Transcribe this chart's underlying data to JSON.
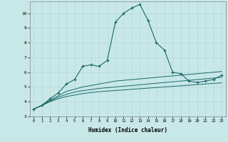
{
  "title": "",
  "xlabel": "Humidex (Indice chaleur)",
  "ylabel": "",
  "bg_color": "#c8e8e8",
  "line_color": "#1a6868",
  "grid_color": "#b8d8d8",
  "xlim": [
    -0.5,
    23.5
  ],
  "ylim": [
    3,
    10.8
  ],
  "xticks": [
    0,
    1,
    2,
    3,
    4,
    5,
    6,
    7,
    8,
    9,
    10,
    11,
    12,
    13,
    14,
    15,
    16,
    17,
    18,
    19,
    20,
    21,
    22,
    23
  ],
  "yticks": [
    3,
    4,
    5,
    6,
    7,
    8,
    9,
    10
  ],
  "main_x": [
    0,
    1,
    2,
    3,
    4,
    5,
    6,
    7,
    8,
    9,
    10,
    11,
    12,
    13,
    14,
    15,
    16,
    17,
    18,
    19,
    20,
    21,
    22,
    23
  ],
  "main_y": [
    3.5,
    3.75,
    4.2,
    4.6,
    5.2,
    5.5,
    6.4,
    6.5,
    6.4,
    6.8,
    9.4,
    10.0,
    10.35,
    10.6,
    9.5,
    8.0,
    7.5,
    6.0,
    5.9,
    5.4,
    5.3,
    5.4,
    5.5,
    5.8
  ],
  "line2_x": [
    0,
    1,
    2,
    3,
    4,
    5,
    6,
    7,
    8,
    9,
    10,
    11,
    12,
    13,
    14,
    15,
    16,
    17,
    18,
    19,
    20,
    21,
    22,
    23
  ],
  "line2_y": [
    3.5,
    3.75,
    4.1,
    4.4,
    4.7,
    4.85,
    5.0,
    5.1,
    5.2,
    5.3,
    5.4,
    5.45,
    5.5,
    5.55,
    5.6,
    5.65,
    5.7,
    5.75,
    5.8,
    5.85,
    5.9,
    5.95,
    6.0,
    6.05
  ],
  "line3_x": [
    0,
    1,
    2,
    3,
    4,
    5,
    6,
    7,
    8,
    9,
    10,
    11,
    12,
    13,
    14,
    15,
    16,
    17,
    18,
    19,
    20,
    21,
    22,
    23
  ],
  "line3_y": [
    3.5,
    3.75,
    4.05,
    4.3,
    4.5,
    4.65,
    4.75,
    4.82,
    4.9,
    4.95,
    5.0,
    5.05,
    5.1,
    5.15,
    5.2,
    5.25,
    5.3,
    5.35,
    5.4,
    5.45,
    5.5,
    5.55,
    5.6,
    5.65
  ],
  "line4_x": [
    0,
    1,
    2,
    3,
    4,
    5,
    6,
    7,
    8,
    9,
    10,
    11,
    12,
    13,
    14,
    15,
    16,
    17,
    18,
    19,
    20,
    21,
    22,
    23
  ],
  "line4_y": [
    3.5,
    3.75,
    4.0,
    4.2,
    4.35,
    4.45,
    4.55,
    4.62,
    4.68,
    4.72,
    4.76,
    4.8,
    4.84,
    4.88,
    4.92,
    4.96,
    5.0,
    5.04,
    5.08,
    5.12,
    5.16,
    5.2,
    5.24,
    5.28
  ]
}
